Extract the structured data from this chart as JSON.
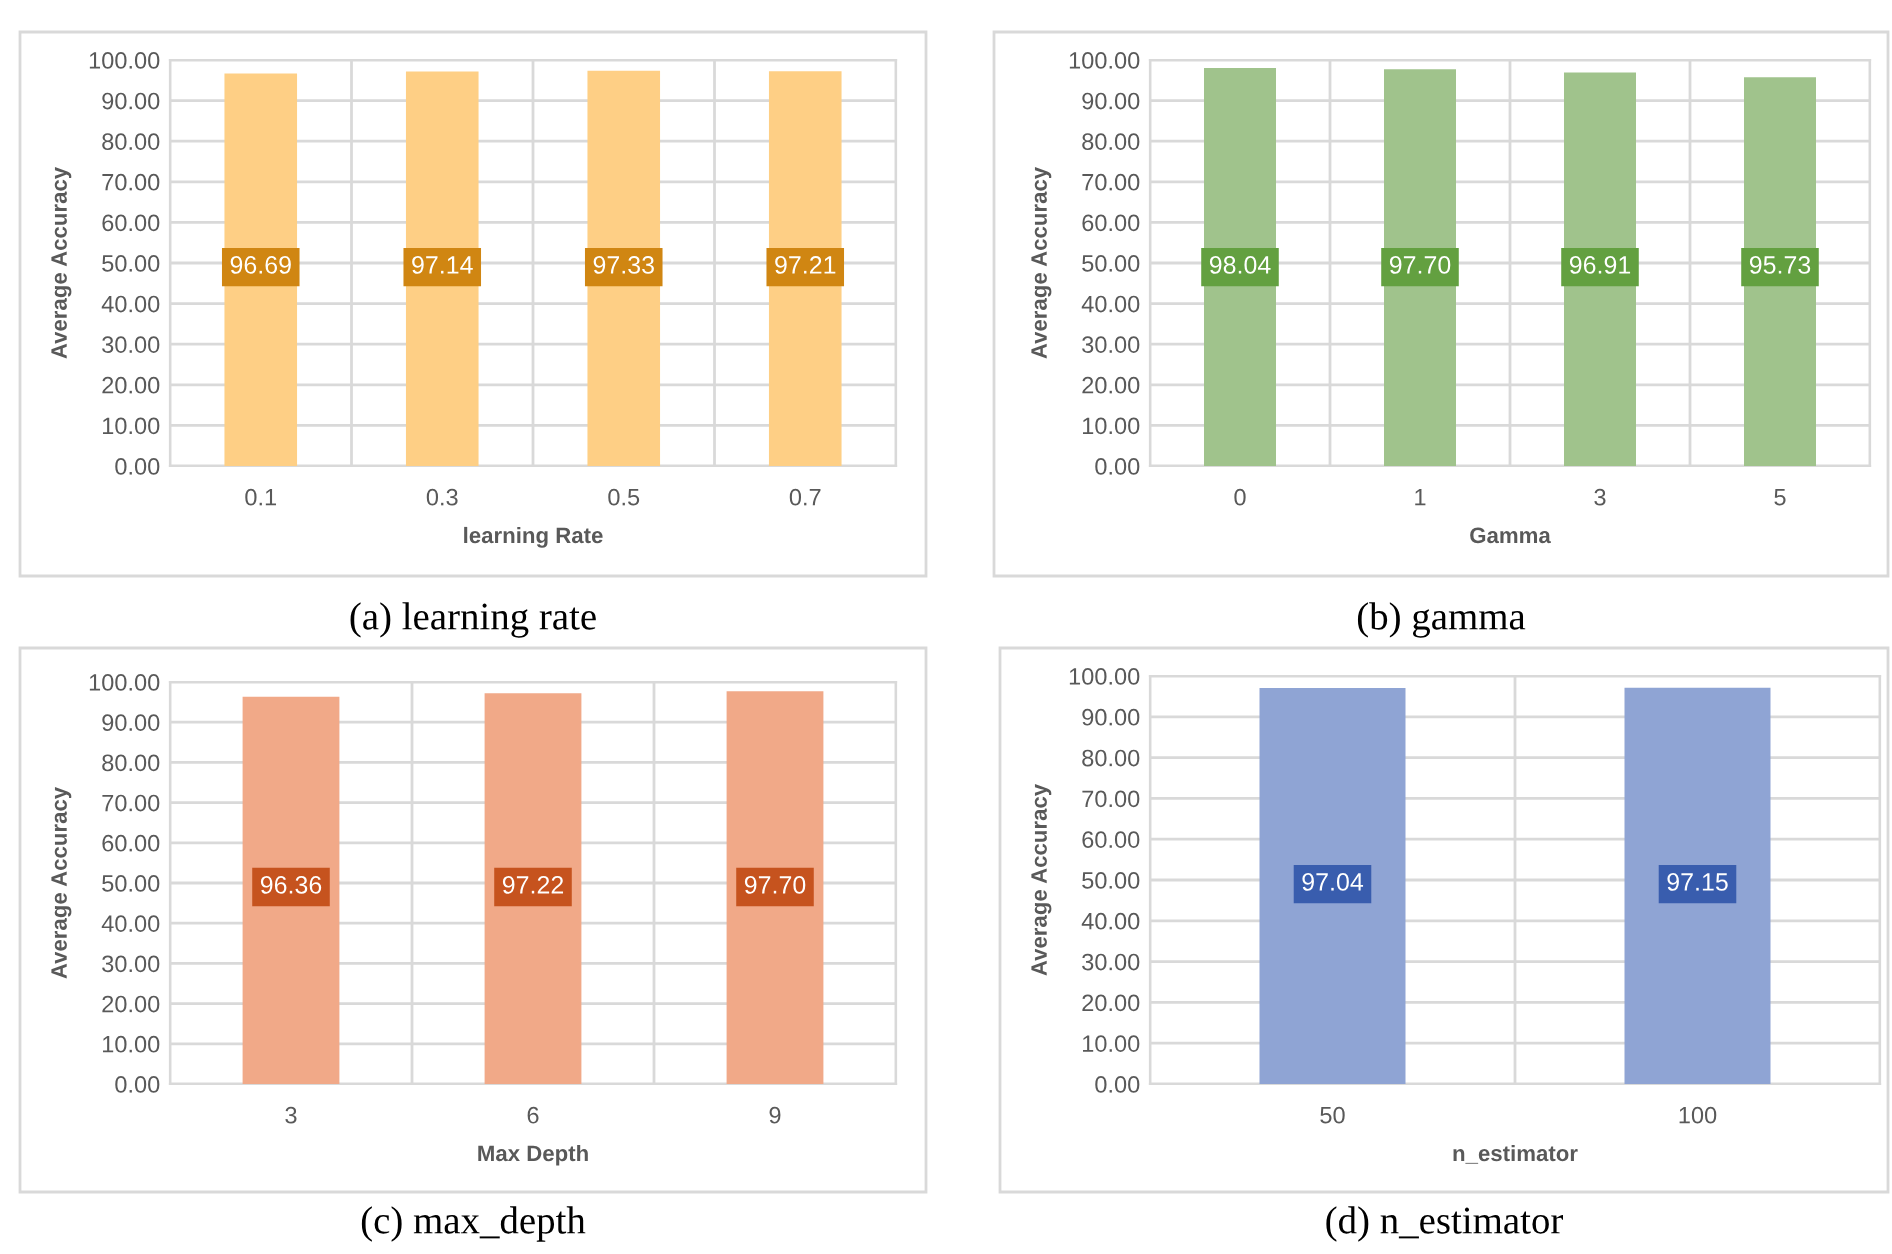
{
  "chart_data": [
    {
      "type": "bar",
      "xlabel": "learning Rate",
      "ylabel": "Average Accuracy",
      "categories": [
        "0.1",
        "0.3",
        "0.5",
        "0.7"
      ],
      "values": [
        96.69,
        97.14,
        97.33,
        97.21
      ],
      "color": "#fecf85",
      "ylim": [
        0,
        100
      ],
      "yticks": [
        {
          "value": 0,
          "label": "0.00"
        },
        {
          "value": 10,
          "label": "10.00"
        },
        {
          "value": 20,
          "label": "20.00"
        },
        {
          "value": 30,
          "label": "30.00"
        },
        {
          "value": 40,
          "label": "40.00"
        },
        {
          "value": 50,
          "label": "50.00"
        },
        {
          "value": 60,
          "label": "60.00"
        },
        {
          "value": 70,
          "label": "70.00"
        },
        {
          "value": 80,
          "label": "80.00"
        },
        {
          "value": 90,
          "label": "90.00"
        },
        {
          "value": 100,
          "label": "100.00"
        }
      ],
      "grid": true,
      "value_labels": [
        "96.69",
        "97.14",
        "97.33",
        "97.21"
      ],
      "annotations": [
        "(a) learning rate"
      ]
    },
    {
      "type": "bar",
      "xlabel": "Gamma",
      "ylabel": "Average Accuracy",
      "categories": [
        "0",
        "1",
        "3",
        "5"
      ],
      "values": [
        98.04,
        97.7,
        96.91,
        95.73
      ],
      "color": "#a0c38c",
      "ylim": [
        0,
        100
      ],
      "yticks": [
        {
          "value": 0,
          "label": "0.00"
        },
        {
          "value": 10,
          "label": "10.00"
        },
        {
          "value": 20,
          "label": "20.00"
        },
        {
          "value": 30,
          "label": "30.00"
        },
        {
          "value": 40,
          "label": "40.00"
        },
        {
          "value": 50,
          "label": "50.00"
        },
        {
          "value": 60,
          "label": "60.00"
        },
        {
          "value": 70,
          "label": "70.00"
        },
        {
          "value": 80,
          "label": "80.00"
        },
        {
          "value": 90,
          "label": "90.00"
        },
        {
          "value": 100,
          "label": "100.00"
        }
      ],
      "grid": true,
      "value_labels": [
        "98.04",
        "97.70",
        "96.91",
        "95.73"
      ],
      "annotations": [
        "(b) gamma"
      ]
    },
    {
      "type": "bar",
      "xlabel": "Max Depth",
      "ylabel": "Average Accuracy",
      "categories": [
        "3",
        "6",
        "9"
      ],
      "values": [
        96.36,
        97.22,
        97.7
      ],
      "color": "#f1a988",
      "ylim": [
        0,
        100
      ],
      "yticks": [
        {
          "value": 0,
          "label": "0.00"
        },
        {
          "value": 10,
          "label": "10.00"
        },
        {
          "value": 20,
          "label": "20.00"
        },
        {
          "value": 30,
          "label": "30.00"
        },
        {
          "value": 40,
          "label": "40.00"
        },
        {
          "value": 50,
          "label": "50.00"
        },
        {
          "value": 60,
          "label": "60.00"
        },
        {
          "value": 70,
          "label": "70.00"
        },
        {
          "value": 80,
          "label": "80.00"
        },
        {
          "value": 90,
          "label": "90.00"
        },
        {
          "value": 100,
          "label": "100.00"
        }
      ],
      "grid": true,
      "value_labels": [
        "96.36",
        "97.22",
        "97.70"
      ],
      "annotations": [
        "(c) max_depth"
      ]
    },
    {
      "type": "bar",
      "xlabel": "n_estimator",
      "ylabel": "Average Accuracy",
      "categories": [
        "50",
        "100"
      ],
      "values": [
        97.04,
        97.15
      ],
      "color": "#8fa4d4",
      "ylim": [
        0,
        100
      ],
      "yticks": [
        {
          "value": 0,
          "label": "0.00"
        },
        {
          "value": 10,
          "label": "10.00"
        },
        {
          "value": 20,
          "label": "20.00"
        },
        {
          "value": 30,
          "label": "30.00"
        },
        {
          "value": 40,
          "label": "40.00"
        },
        {
          "value": 50,
          "label": "50.00"
        },
        {
          "value": 60,
          "label": "60.00"
        },
        {
          "value": 70,
          "label": "70.00"
        },
        {
          "value": 80,
          "label": "80.00"
        },
        {
          "value": 90,
          "label": "90.00"
        },
        {
          "value": 100,
          "label": "100.00"
        }
      ],
      "grid": true,
      "value_labels": [
        "97.04",
        "97.15"
      ],
      "annotations": [
        "(d) n_estimator"
      ]
    }
  ]
}
